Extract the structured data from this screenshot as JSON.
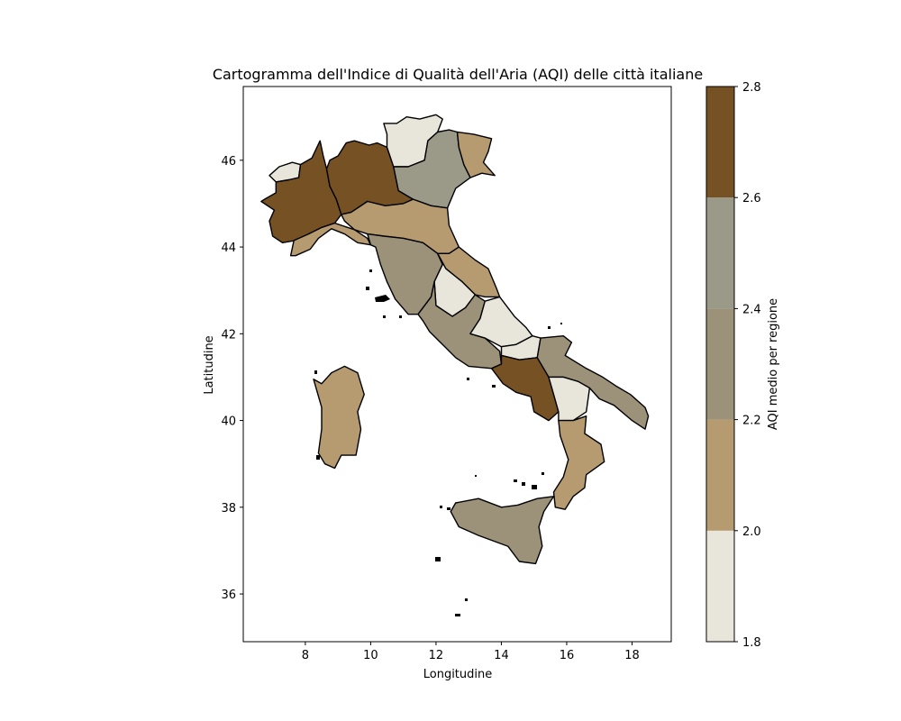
{
  "chart_data": {
    "type": "choropleth",
    "title": "Cartogramma dell'Indice di Qualità dell'Aria (AQI) delle città italiane",
    "xlabel": "Longitudine",
    "ylabel": "Latitudine",
    "xlim": [
      6.1,
      19.2
    ],
    "ylim": [
      34.9,
      47.7
    ],
    "xticks": [
      8,
      10,
      12,
      14,
      16,
      18
    ],
    "yticks": [
      36,
      38,
      40,
      42,
      44,
      46
    ],
    "colorbar": {
      "label": "AQI medio per regione",
      "range": [
        1.8,
        2.8
      ],
      "ticks": [
        1.8,
        2.0,
        2.2,
        2.4,
        2.6,
        2.8
      ],
      "bins": [
        {
          "from": 1.8,
          "to": 2.0,
          "color": "#e8e6da"
        },
        {
          "from": 2.0,
          "to": 2.2,
          "color": "#b59b6f"
        },
        {
          "from": 2.2,
          "to": 2.4,
          "color": "#9c9279"
        },
        {
          "from": 2.4,
          "to": 2.6,
          "color": "#9b9a89"
        },
        {
          "from": 2.6,
          "to": 2.8,
          "color": "#765124"
        }
      ]
    },
    "regions": [
      {
        "id": "valle-d-aosta",
        "aqi": 1.9,
        "points": [
          [
            6.9,
            45.65
          ],
          [
            7.2,
            45.85
          ],
          [
            7.6,
            45.95
          ],
          [
            7.85,
            45.9
          ],
          [
            7.8,
            45.6
          ],
          [
            7.5,
            45.55
          ],
          [
            7.1,
            45.5
          ]
        ]
      },
      {
        "id": "piemonte",
        "aqi": 2.7,
        "points": [
          [
            6.75,
            45.1
          ],
          [
            7.1,
            45.25
          ],
          [
            7.1,
            45.5
          ],
          [
            7.5,
            45.55
          ],
          [
            7.8,
            45.6
          ],
          [
            7.85,
            45.9
          ],
          [
            8.2,
            46.05
          ],
          [
            8.45,
            46.45
          ],
          [
            8.55,
            46.1
          ],
          [
            8.65,
            45.8
          ],
          [
            8.75,
            45.4
          ],
          [
            8.95,
            45.1
          ],
          [
            9.1,
            44.75
          ],
          [
            8.9,
            44.55
          ],
          [
            8.5,
            44.45
          ],
          [
            8.1,
            44.3
          ],
          [
            7.7,
            44.15
          ],
          [
            7.3,
            44.1
          ],
          [
            7.0,
            44.25
          ],
          [
            6.9,
            44.6
          ],
          [
            7.05,
            44.85
          ],
          [
            6.65,
            45.05
          ]
        ]
      },
      {
        "id": "lombardia",
        "aqi": 2.7,
        "points": [
          [
            8.65,
            45.8
          ],
          [
            8.75,
            45.4
          ],
          [
            8.95,
            45.1
          ],
          [
            9.1,
            44.75
          ],
          [
            9.4,
            44.8
          ],
          [
            9.9,
            45.05
          ],
          [
            10.45,
            44.95
          ],
          [
            11.0,
            45.0
          ],
          [
            11.3,
            45.1
          ],
          [
            10.85,
            45.3
          ],
          [
            10.7,
            45.85
          ],
          [
            10.5,
            46.3
          ],
          [
            10.2,
            46.4
          ],
          [
            9.95,
            46.35
          ],
          [
            9.5,
            46.45
          ],
          [
            9.25,
            46.4
          ],
          [
            9.0,
            46.1
          ],
          [
            8.75,
            46.0
          ]
        ]
      },
      {
        "id": "trentino-alto-adige",
        "aqi": 1.9,
        "points": [
          [
            10.5,
            46.3
          ],
          [
            10.5,
            46.6
          ],
          [
            10.4,
            46.85
          ],
          [
            10.8,
            46.85
          ],
          [
            11.1,
            47.0
          ],
          [
            11.5,
            46.95
          ],
          [
            12.0,
            47.05
          ],
          [
            12.2,
            46.95
          ],
          [
            12.05,
            46.65
          ],
          [
            11.75,
            46.45
          ],
          [
            11.65,
            46.0
          ],
          [
            11.15,
            45.85
          ],
          [
            10.7,
            45.85
          ]
        ]
      },
      {
        "id": "veneto",
        "aqi": 2.4,
        "points": [
          [
            10.7,
            45.85
          ],
          [
            10.85,
            45.3
          ],
          [
            11.3,
            45.1
          ],
          [
            11.85,
            44.95
          ],
          [
            12.35,
            44.9
          ],
          [
            12.6,
            45.35
          ],
          [
            13.05,
            45.6
          ],
          [
            12.85,
            45.9
          ],
          [
            12.7,
            46.3
          ],
          [
            12.65,
            46.65
          ],
          [
            12.4,
            46.7
          ],
          [
            12.05,
            46.65
          ],
          [
            11.75,
            46.45
          ],
          [
            11.65,
            46.0
          ],
          [
            11.15,
            45.85
          ]
        ]
      },
      {
        "id": "friuli-venezia-giulia",
        "aqi": 2.1,
        "points": [
          [
            12.65,
            46.65
          ],
          [
            13.15,
            46.6
          ],
          [
            13.7,
            46.5
          ],
          [
            13.6,
            46.2
          ],
          [
            13.45,
            45.95
          ],
          [
            13.8,
            45.65
          ],
          [
            13.4,
            45.7
          ],
          [
            13.05,
            45.6
          ],
          [
            12.85,
            45.9
          ],
          [
            12.7,
            46.3
          ]
        ]
      },
      {
        "id": "liguria",
        "aqi": 2.1,
        "points": [
          [
            7.55,
            43.8
          ],
          [
            7.65,
            44.15
          ],
          [
            8.1,
            44.3
          ],
          [
            8.5,
            44.45
          ],
          [
            8.9,
            44.55
          ],
          [
            9.5,
            44.4
          ],
          [
            9.9,
            44.2
          ],
          [
            10.0,
            44.05
          ],
          [
            9.6,
            44.1
          ],
          [
            9.2,
            44.3
          ],
          [
            8.8,
            44.42
          ],
          [
            8.4,
            44.2
          ],
          [
            8.15,
            43.95
          ],
          [
            7.7,
            43.8
          ]
        ]
      },
      {
        "id": "emilia-romagna",
        "aqi": 2.1,
        "points": [
          [
            9.1,
            44.75
          ],
          [
            9.4,
            44.8
          ],
          [
            9.9,
            45.05
          ],
          [
            10.45,
            44.95
          ],
          [
            11.0,
            45.0
          ],
          [
            11.3,
            45.1
          ],
          [
            11.85,
            44.95
          ],
          [
            12.35,
            44.9
          ],
          [
            12.4,
            44.5
          ],
          [
            12.7,
            44.0
          ],
          [
            12.4,
            43.85
          ],
          [
            12.05,
            43.85
          ],
          [
            11.6,
            44.1
          ],
          [
            11.0,
            44.2
          ],
          [
            10.4,
            44.25
          ],
          [
            9.9,
            44.3
          ],
          [
            9.5,
            44.4
          ],
          [
            9.2,
            44.6
          ]
        ]
      },
      {
        "id": "toscana",
        "aqi": 2.3,
        "points": [
          [
            9.9,
            44.3
          ],
          [
            10.4,
            44.25
          ],
          [
            11.0,
            44.2
          ],
          [
            11.6,
            44.1
          ],
          [
            12.05,
            43.85
          ],
          [
            12.2,
            43.6
          ],
          [
            11.95,
            43.2
          ],
          [
            11.85,
            42.85
          ],
          [
            11.45,
            42.45
          ],
          [
            11.15,
            42.45
          ],
          [
            10.75,
            42.8
          ],
          [
            10.5,
            43.2
          ],
          [
            10.3,
            43.6
          ],
          [
            10.15,
            44.0
          ],
          [
            10.0,
            44.05
          ]
        ]
      },
      {
        "id": "marche",
        "aqi": 2.1,
        "points": [
          [
            12.7,
            44.0
          ],
          [
            13.2,
            43.7
          ],
          [
            13.6,
            43.5
          ],
          [
            13.85,
            43.05
          ],
          [
            13.95,
            42.85
          ],
          [
            13.5,
            42.85
          ],
          [
            13.2,
            42.9
          ],
          [
            12.8,
            43.2
          ],
          [
            12.3,
            43.5
          ],
          [
            12.05,
            43.85
          ],
          [
            12.4,
            43.85
          ]
        ]
      },
      {
        "id": "umbria",
        "aqi": 1.9,
        "points": [
          [
            12.05,
            43.85
          ],
          [
            12.3,
            43.5
          ],
          [
            12.8,
            43.2
          ],
          [
            13.2,
            42.9
          ],
          [
            12.9,
            42.6
          ],
          [
            12.5,
            42.4
          ],
          [
            12.0,
            42.65
          ],
          [
            11.95,
            43.2
          ],
          [
            12.2,
            43.6
          ]
        ]
      },
      {
        "id": "lazio",
        "aqi": 2.3,
        "points": [
          [
            11.45,
            42.45
          ],
          [
            11.85,
            42.85
          ],
          [
            11.95,
            43.2
          ],
          [
            12.0,
            42.65
          ],
          [
            12.5,
            42.4
          ],
          [
            12.9,
            42.6
          ],
          [
            13.2,
            42.9
          ],
          [
            13.5,
            42.75
          ],
          [
            13.35,
            42.35
          ],
          [
            13.05,
            42.0
          ],
          [
            13.5,
            41.9
          ],
          [
            13.95,
            41.6
          ],
          [
            14.0,
            41.3
          ],
          [
            13.7,
            41.2
          ],
          [
            13.0,
            41.25
          ],
          [
            12.6,
            41.45
          ],
          [
            12.2,
            41.75
          ],
          [
            11.8,
            42.05
          ],
          [
            11.6,
            42.3
          ]
        ]
      },
      {
        "id": "abruzzo",
        "aqi": 1.9,
        "points": [
          [
            13.95,
            42.85
          ],
          [
            14.4,
            42.4
          ],
          [
            14.75,
            42.15
          ],
          [
            14.95,
            41.95
          ],
          [
            14.45,
            41.75
          ],
          [
            14.0,
            41.7
          ],
          [
            13.5,
            41.9
          ],
          [
            13.05,
            42.0
          ],
          [
            13.35,
            42.35
          ],
          [
            13.5,
            42.75
          ]
        ]
      },
      {
        "id": "molise",
        "aqi": 1.9,
        "points": [
          [
            14.95,
            41.95
          ],
          [
            15.2,
            41.9
          ],
          [
            15.1,
            41.45
          ],
          [
            14.55,
            41.4
          ],
          [
            14.0,
            41.5
          ],
          [
            14.0,
            41.7
          ],
          [
            14.45,
            41.75
          ]
        ]
      },
      {
        "id": "campania",
        "aqi": 2.7,
        "points": [
          [
            13.7,
            41.2
          ],
          [
            14.0,
            41.3
          ],
          [
            14.0,
            41.5
          ],
          [
            14.55,
            41.4
          ],
          [
            15.1,
            41.45
          ],
          [
            15.45,
            41.0
          ],
          [
            15.6,
            40.6
          ],
          [
            15.75,
            40.2
          ],
          [
            15.45,
            40.0
          ],
          [
            15.0,
            40.2
          ],
          [
            14.9,
            40.55
          ],
          [
            14.45,
            40.65
          ],
          [
            14.05,
            40.85
          ],
          [
            13.85,
            41.05
          ]
        ]
      },
      {
        "id": "puglia",
        "aqi": 2.3,
        "points": [
          [
            15.2,
            41.9
          ],
          [
            15.9,
            41.95
          ],
          [
            16.15,
            41.8
          ],
          [
            15.95,
            41.5
          ],
          [
            16.6,
            41.2
          ],
          [
            17.1,
            41.0
          ],
          [
            17.5,
            40.8
          ],
          [
            17.95,
            40.6
          ],
          [
            18.4,
            40.3
          ],
          [
            18.5,
            40.1
          ],
          [
            18.4,
            39.8
          ],
          [
            18.0,
            40.0
          ],
          [
            17.45,
            40.35
          ],
          [
            17.0,
            40.5
          ],
          [
            16.7,
            40.75
          ],
          [
            16.35,
            40.9
          ],
          [
            15.9,
            41.0
          ],
          [
            15.45,
            41.0
          ],
          [
            15.1,
            41.45
          ]
        ]
      },
      {
        "id": "basilicata",
        "aqi": 1.9,
        "points": [
          [
            15.45,
            41.0
          ],
          [
            15.9,
            41.0
          ],
          [
            16.35,
            40.9
          ],
          [
            16.7,
            40.75
          ],
          [
            16.6,
            40.2
          ],
          [
            16.2,
            40.0
          ],
          [
            15.75,
            40.0
          ],
          [
            15.75,
            40.2
          ],
          [
            15.6,
            40.6
          ]
        ]
      },
      {
        "id": "calabria",
        "aqi": 2.1,
        "points": [
          [
            15.75,
            40.0
          ],
          [
            16.2,
            40.0
          ],
          [
            16.6,
            40.1
          ],
          [
            16.55,
            39.7
          ],
          [
            17.05,
            39.45
          ],
          [
            17.15,
            39.05
          ],
          [
            16.6,
            38.75
          ],
          [
            16.55,
            38.45
          ],
          [
            16.2,
            38.25
          ],
          [
            15.95,
            37.95
          ],
          [
            15.65,
            38.0
          ],
          [
            15.6,
            38.35
          ],
          [
            15.9,
            38.7
          ],
          [
            16.05,
            39.1
          ],
          [
            15.8,
            39.65
          ]
        ]
      },
      {
        "id": "sardegna",
        "aqi": 2.1,
        "points": [
          [
            8.25,
            40.95
          ],
          [
            8.5,
            40.85
          ],
          [
            8.8,
            41.1
          ],
          [
            9.2,
            41.25
          ],
          [
            9.6,
            41.1
          ],
          [
            9.8,
            40.6
          ],
          [
            9.6,
            40.2
          ],
          [
            9.7,
            39.8
          ],
          [
            9.55,
            39.2
          ],
          [
            9.1,
            39.2
          ],
          [
            8.9,
            38.9
          ],
          [
            8.6,
            39.0
          ],
          [
            8.4,
            39.25
          ],
          [
            8.5,
            39.8
          ],
          [
            8.5,
            40.3
          ]
        ]
      },
      {
        "id": "sicilia",
        "aqi": 2.3,
        "points": [
          [
            12.45,
            37.9
          ],
          [
            12.6,
            38.1
          ],
          [
            13.3,
            38.2
          ],
          [
            14.0,
            38.0
          ],
          [
            14.5,
            38.05
          ],
          [
            15.1,
            38.2
          ],
          [
            15.6,
            38.25
          ],
          [
            15.3,
            37.9
          ],
          [
            15.15,
            37.55
          ],
          [
            15.25,
            37.1
          ],
          [
            15.05,
            36.7
          ],
          [
            14.55,
            36.75
          ],
          [
            14.2,
            37.1
          ],
          [
            13.3,
            37.35
          ],
          [
            12.7,
            37.55
          ]
        ]
      }
    ]
  }
}
